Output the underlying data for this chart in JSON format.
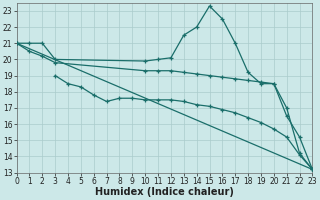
{
  "line1_peak": {
    "x": [
      0,
      1,
      2,
      3,
      10,
      11,
      12,
      13,
      14,
      15,
      16,
      17,
      18,
      19,
      20,
      21,
      22,
      23
    ],
    "y": [
      21,
      21,
      21,
      20,
      19.9,
      20.0,
      20.1,
      21.5,
      22.0,
      23.3,
      22.5,
      21.0,
      19.2,
      18.5,
      18.5,
      16.5,
      15.2,
      13.2
    ]
  },
  "line2_flat": {
    "x": [
      0,
      23
    ],
    "y": [
      21,
      13.2
    ]
  },
  "line3_mid": {
    "x": [
      0,
      1,
      2,
      3,
      10,
      11,
      12,
      13,
      14,
      15,
      16,
      17,
      18,
      19,
      20,
      21,
      22,
      23
    ],
    "y": [
      21,
      20.5,
      20.2,
      19.8,
      19.3,
      19.3,
      19.3,
      19.2,
      19.1,
      19.0,
      18.9,
      18.8,
      18.7,
      18.6,
      18.5,
      17.0,
      14.2,
      13.2
    ]
  },
  "line4_low": {
    "x": [
      3,
      4,
      5,
      6,
      7,
      8,
      9,
      10,
      11,
      12,
      13,
      14,
      15,
      16,
      17,
      18,
      19,
      20,
      21,
      22,
      23
    ],
    "y": [
      19.0,
      18.5,
      18.3,
      17.8,
      17.4,
      17.6,
      17.6,
      17.5,
      17.5,
      17.5,
      17.4,
      17.2,
      17.1,
      16.9,
      16.7,
      16.4,
      16.1,
      15.7,
      15.2,
      14.1,
      13.2
    ]
  },
  "xlim": [
    0,
    23
  ],
  "ylim": [
    13,
    23.5
  ],
  "yticks": [
    13,
    14,
    15,
    16,
    17,
    18,
    19,
    20,
    21,
    22,
    23
  ],
  "xticks": [
    0,
    1,
    2,
    3,
    4,
    5,
    6,
    7,
    8,
    9,
    10,
    11,
    12,
    13,
    14,
    15,
    16,
    17,
    18,
    19,
    20,
    21,
    22,
    23
  ],
  "xlabel": "Humidex (Indice chaleur)",
  "bg_color": "#cce8e8",
  "grid_color": "#aacccc",
  "line_color": "#1a6e6a",
  "tick_fontsize": 5.5,
  "xlabel_fontsize": 7.0
}
